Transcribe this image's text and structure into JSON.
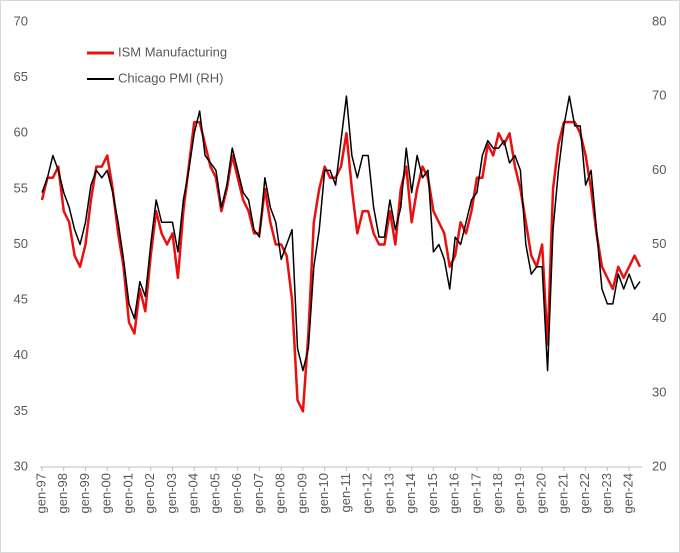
{
  "chart_data": {
    "type": "line",
    "categories": [
      "gen-97",
      null,
      null,
      null,
      "gen-98",
      null,
      null,
      null,
      "gen-99",
      null,
      null,
      null,
      "gen-00",
      null,
      null,
      null,
      "gen-01",
      null,
      null,
      null,
      "gen-02",
      null,
      null,
      null,
      "gen-03",
      null,
      null,
      null,
      "gen-04",
      null,
      null,
      null,
      "gen-05",
      null,
      null,
      null,
      "gen-06",
      null,
      null,
      null,
      "gen-07",
      null,
      null,
      null,
      "gen-08",
      null,
      null,
      null,
      "gen-09",
      null,
      null,
      null,
      "gen-10",
      null,
      null,
      null,
      "gen-11",
      null,
      null,
      null,
      "gen-12",
      null,
      null,
      null,
      "gen-13",
      null,
      null,
      null,
      "gen-14",
      null,
      null,
      null,
      "gen-15",
      null,
      null,
      null,
      "gen-16",
      null,
      null,
      null,
      "gen-17",
      null,
      null,
      null,
      "gen-18",
      null,
      null,
      null,
      "gen-19",
      null,
      null,
      null,
      "gen-20",
      null,
      null,
      null,
      "gen-21",
      null,
      null,
      null,
      "gen-22",
      null,
      null,
      null,
      "gen-23",
      null,
      null,
      null,
      "gen-24",
      null,
      null
    ],
    "series": [
      {
        "name": "ISM Manufacturing",
        "color": "#e81010",
        "axis": "y",
        "values": [
          54,
          56,
          56,
          57,
          53,
          52,
          49,
          48,
          50,
          54,
          57,
          57,
          58,
          55,
          51,
          48,
          43,
          42,
          46,
          44,
          49,
          53,
          51,
          50,
          51,
          47,
          53,
          57,
          61,
          61,
          59,
          57,
          56,
          53,
          55,
          58,
          56,
          54,
          53,
          51,
          51,
          55,
          52,
          50,
          50,
          49,
          45,
          36,
          35,
          42,
          52,
          55,
          57,
          56,
          56,
          57,
          60,
          55,
          51,
          53,
          53,
          51,
          50,
          50,
          53,
          50,
          55,
          57,
          52,
          55,
          57,
          56,
          53,
          52,
          51,
          48,
          49,
          52,
          51,
          53,
          56,
          56,
          59,
          58,
          60,
          59,
          60,
          57,
          55,
          52,
          49,
          48,
          50,
          41,
          55,
          59,
          61,
          61,
          61,
          60,
          58,
          55,
          51,
          48,
          47,
          46,
          48,
          47,
          48,
          49,
          48
        ]
      },
      {
        "name": "Chicago PMI (RH)",
        "color": "#000000",
        "axis": "y2",
        "values": [
          57,
          59,
          62,
          60,
          57,
          55,
          52,
          50,
          53,
          58,
          60,
          59,
          60,
          57,
          53,
          48,
          42,
          40,
          45,
          43,
          50,
          56,
          53,
          53,
          53,
          49,
          56,
          60,
          65,
          68,
          62,
          61,
          60,
          55,
          58,
          63,
          60,
          57,
          56,
          52,
          51,
          59,
          55,
          53,
          48,
          50,
          52,
          36,
          33,
          36,
          47,
          52,
          60,
          60,
          58,
          64,
          70,
          62,
          59,
          62,
          62,
          55,
          51,
          51,
          56,
          52,
          55,
          63,
          57,
          62,
          59,
          60,
          49,
          50,
          48,
          44,
          51,
          50,
          53,
          56,
          57,
          62,
          64,
          63,
          63,
          64,
          61,
          62,
          60,
          50,
          46,
          47,
          47,
          33,
          52,
          60,
          66,
          70,
          66,
          66,
          58,
          60,
          52,
          44,
          42,
          42,
          46,
          44,
          46,
          44,
          45
        ]
      }
    ],
    "ylim": [
      30,
      70
    ],
    "yticks": [
      30,
      35,
      40,
      45,
      50,
      55,
      60,
      65,
      70
    ],
    "y2lim": [
      20,
      80
    ],
    "y2ticks": [
      20,
      30,
      40,
      50,
      60,
      70,
      80
    ],
    "legend": "upper left"
  }
}
